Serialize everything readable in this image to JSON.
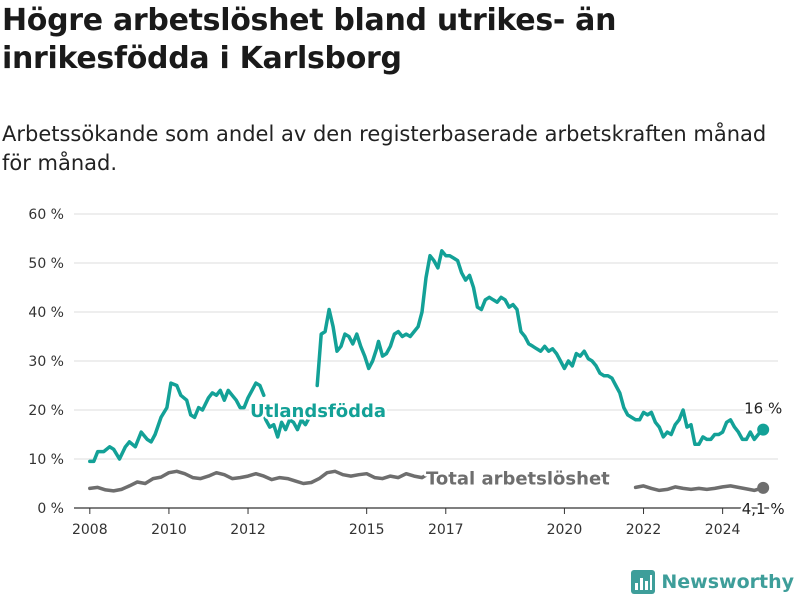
{
  "title": "Högre arbetslöshet bland utrikes- än inrikesfödda i Karlsborg",
  "subtitle": "Arbetssökande som andel av den registerbaserade arbetskraften månad för månad.",
  "brand": {
    "name": "Newsworthy",
    "icon": "bar-chart-logo-icon"
  },
  "colors": {
    "foreign": "#13a197",
    "total": "#6e6e6e",
    "grid": "#dddddd",
    "axis": "#333333"
  },
  "chart_data": {
    "type": "line",
    "title": "Högre arbetslöshet bland utrikes- än inrikesfödda i Karlsborg",
    "ylim": [
      0,
      60
    ],
    "xlim": [
      2007.6,
      2025.4
    ],
    "y_ticks": [
      0,
      10,
      20,
      30,
      40,
      50,
      60
    ],
    "y_tick_labels": [
      "0 %",
      "10 %",
      "20 %",
      "30 %",
      "40 %",
      "50 %",
      "60 %"
    ],
    "x_ticks": [
      2008,
      2010,
      2012,
      2015,
      2017,
      2020,
      2022,
      2024
    ],
    "x_tick_labels": [
      "2008",
      "2010",
      "2012",
      "2015",
      "2017",
      "2020",
      "2022",
      "2024"
    ],
    "grid": true,
    "series": [
      {
        "name": "Utlandsfödda",
        "color": "#13a197",
        "end_label": "16 %",
        "segments": [
          [
            [
              2008.0,
              9.5
            ],
            [
              2008.1,
              9.5
            ],
            [
              2008.2,
              11.5
            ],
            [
              2008.35,
              11.5
            ],
            [
              2008.5,
              12.5
            ],
            [
              2008.6,
              12.0
            ],
            [
              2008.75,
              10.0
            ],
            [
              2008.9,
              12.5
            ],
            [
              2009.0,
              13.5
            ],
            [
              2009.15,
              12.5
            ],
            [
              2009.3,
              15.5
            ],
            [
              2009.45,
              14.0
            ],
            [
              2009.55,
              13.5
            ],
            [
              2009.65,
              15.0
            ],
            [
              2009.8,
              18.5
            ],
            [
              2009.95,
              20.5
            ],
            [
              2010.05,
              25.5
            ],
            [
              2010.2,
              25.0
            ],
            [
              2010.3,
              23.0
            ],
            [
              2010.45,
              22.0
            ],
            [
              2010.55,
              19.0
            ],
            [
              2010.65,
              18.5
            ],
            [
              2010.75,
              20.5
            ],
            [
              2010.85,
              20.0
            ],
            [
              2011.0,
              22.5
            ],
            [
              2011.1,
              23.5
            ],
            [
              2011.2,
              23.0
            ],
            [
              2011.3,
              24.0
            ],
            [
              2011.4,
              22.0
            ],
            [
              2011.5,
              24.0
            ],
            [
              2011.6,
              23.0
            ],
            [
              2011.7,
              22.0
            ],
            [
              2011.8,
              20.5
            ],
            [
              2011.9,
              20.5
            ],
            [
              2012.0,
              22.5
            ],
            [
              2012.1,
              24.0
            ],
            [
              2012.2,
              25.5
            ],
            [
              2012.3,
              25.0
            ],
            [
              2012.4,
              23.0
            ]
          ],
          [
            [
              2012.35,
              20.5
            ],
            [
              2012.45,
              18.0
            ],
            [
              2012.55,
              16.5
            ],
            [
              2012.65,
              17.0
            ],
            [
              2012.75,
              14.5
            ],
            [
              2012.85,
              17.5
            ],
            [
              2012.95,
              16.0
            ],
            [
              2013.05,
              18.0
            ],
            [
              2013.15,
              17.5
            ],
            [
              2013.25,
              16.0
            ],
            [
              2013.35,
              18.0
            ],
            [
              2013.45,
              17.0
            ],
            [
              2013.55,
              18.5
            ],
            [
              2013.6,
              19.0
            ]
          ],
          [
            [
              2013.75,
              25.0
            ],
            [
              2013.85,
              35.5
            ],
            [
              2013.95,
              36.0
            ],
            [
              2014.05,
              40.5
            ],
            [
              2014.15,
              37.0
            ],
            [
              2014.25,
              32.0
            ],
            [
              2014.35,
              33.0
            ],
            [
              2014.45,
              35.5
            ],
            [
              2014.55,
              35.0
            ],
            [
              2014.65,
              33.5
            ],
            [
              2014.75,
              35.5
            ],
            [
              2014.85,
              33.0
            ],
            [
              2014.95,
              31.0
            ],
            [
              2015.05,
              28.5
            ],
            [
              2015.15,
              30.0
            ],
            [
              2015.25,
              32.5
            ],
            [
              2015.3,
              34.0
            ],
            [
              2015.4,
              31.0
            ],
            [
              2015.5,
              31.5
            ],
            [
              2015.6,
              33.0
            ],
            [
              2015.7,
              35.5
            ],
            [
              2015.8,
              36.0
            ],
            [
              2015.9,
              35.0
            ],
            [
              2016.0,
              35.5
            ],
            [
              2016.1,
              35.0
            ],
            [
              2016.2,
              36.0
            ],
            [
              2016.3,
              37.0
            ],
            [
              2016.4,
              40.0
            ],
            [
              2016.5,
              47.0
            ],
            [
              2016.6,
              51.5
            ],
            [
              2016.7,
              50.5
            ],
            [
              2016.8,
              49.0
            ],
            [
              2016.9,
              52.5
            ],
            [
              2017.0,
              51.5
            ],
            [
              2017.1,
              51.5
            ],
            [
              2017.2,
              51.0
            ],
            [
              2017.3,
              50.5
            ],
            [
              2017.4,
              48.0
            ],
            [
              2017.5,
              46.5
            ],
            [
              2017.6,
              47.5
            ],
            [
              2017.7,
              45.0
            ],
            [
              2017.8,
              41.0
            ],
            [
              2017.9,
              40.5
            ],
            [
              2018.0,
              42.5
            ],
            [
              2018.1,
              43.0
            ],
            [
              2018.2,
              42.5
            ],
            [
              2018.3,
              42.0
            ],
            [
              2018.4,
              43.0
            ],
            [
              2018.5,
              42.5
            ],
            [
              2018.6,
              41.0
            ],
            [
              2018.7,
              41.5
            ],
            [
              2018.8,
              40.5
            ],
            [
              2018.9,
              36.0
            ],
            [
              2019.0,
              35.0
            ],
            [
              2019.1,
              33.5
            ],
            [
              2019.2,
              33.0
            ],
            [
              2019.3,
              32.5
            ],
            [
              2019.4,
              32.0
            ],
            [
              2019.5,
              33.0
            ],
            [
              2019.6,
              32.0
            ],
            [
              2019.7,
              32.5
            ],
            [
              2019.8,
              31.5
            ],
            [
              2019.9,
              30.0
            ],
            [
              2020.0,
              28.5
            ],
            [
              2020.1,
              30.0
            ],
            [
              2020.2,
              29.0
            ],
            [
              2020.3,
              31.5
            ],
            [
              2020.4,
              31.0
            ],
            [
              2020.5,
              32.0
            ],
            [
              2020.6,
              30.5
            ],
            [
              2020.7,
              30.0
            ],
            [
              2020.8,
              29.0
            ],
            [
              2020.9,
              27.5
            ],
            [
              2021.0,
              27.0
            ],
            [
              2021.1,
              27.0
            ],
            [
              2021.2,
              26.5
            ],
            [
              2021.3,
              25.0
            ],
            [
              2021.4,
              23.5
            ],
            [
              2021.5,
              20.5
            ],
            [
              2021.6,
              19.0
            ],
            [
              2021.7,
              18.5
            ],
            [
              2021.8,
              18.0
            ],
            [
              2021.9,
              18.0
            ],
            [
              2022.0,
              19.5
            ],
            [
              2022.1,
              19.0
            ],
            [
              2022.2,
              19.5
            ],
            [
              2022.3,
              17.5
            ],
            [
              2022.4,
              16.5
            ],
            [
              2022.5,
              14.5
            ],
            [
              2022.6,
              15.5
            ],
            [
              2022.7,
              15.0
            ],
            [
              2022.8,
              17.0
            ],
            [
              2022.9,
              18.0
            ],
            [
              2023.0,
              20.0
            ],
            [
              2023.1,
              16.5
            ],
            [
              2023.2,
              17.0
            ],
            [
              2023.3,
              13.0
            ],
            [
              2023.4,
              13.0
            ],
            [
              2023.5,
              14.5
            ],
            [
              2023.6,
              14.0
            ],
            [
              2023.7,
              14.0
            ],
            [
              2023.8,
              15.0
            ],
            [
              2023.9,
              15.0
            ],
            [
              2024.0,
              15.5
            ],
            [
              2024.1,
              17.5
            ],
            [
              2024.2,
              18.0
            ],
            [
              2024.3,
              16.5
            ],
            [
              2024.4,
              15.5
            ],
            [
              2024.5,
              14.0
            ],
            [
              2024.6,
              14.0
            ],
            [
              2024.7,
              15.5
            ],
            [
              2024.8,
              14.0
            ],
            [
              2024.9,
              15.0
            ],
            [
              2025.0,
              16.0
            ]
          ]
        ]
      },
      {
        "name": "Total arbetslöshet",
        "color": "#6e6e6e",
        "end_label": "4,1 %",
        "segments": [
          [
            [
              2008.0,
              4.0
            ],
            [
              2008.2,
              4.2
            ],
            [
              2008.4,
              3.7
            ],
            [
              2008.6,
              3.5
            ],
            [
              2008.8,
              3.8
            ],
            [
              2009.0,
              4.5
            ],
            [
              2009.2,
              5.3
            ],
            [
              2009.4,
              5.0
            ],
            [
              2009.6,
              6.0
            ],
            [
              2009.8,
              6.3
            ],
            [
              2010.0,
              7.2
            ],
            [
              2010.2,
              7.5
            ],
            [
              2010.4,
              7.0
            ],
            [
              2010.6,
              6.2
            ],
            [
              2010.8,
              6.0
            ],
            [
              2011.0,
              6.5
            ],
            [
              2011.2,
              7.2
            ],
            [
              2011.4,
              6.8
            ],
            [
              2011.6,
              6.0
            ],
            [
              2011.8,
              6.2
            ],
            [
              2012.0,
              6.5
            ],
            [
              2012.2,
              7.0
            ],
            [
              2012.4,
              6.5
            ],
            [
              2012.6,
              5.8
            ],
            [
              2012.8,
              6.2
            ],
            [
              2013.0,
              6.0
            ],
            [
              2013.2,
              5.5
            ],
            [
              2013.4,
              5.0
            ],
            [
              2013.6,
              5.2
            ],
            [
              2013.8,
              6.0
            ],
            [
              2014.0,
              7.2
            ],
            [
              2014.2,
              7.5
            ],
            [
              2014.4,
              6.8
            ],
            [
              2014.6,
              6.5
            ],
            [
              2014.8,
              6.8
            ],
            [
              2015.0,
              7.0
            ],
            [
              2015.2,
              6.2
            ],
            [
              2015.4,
              6.0
            ],
            [
              2015.6,
              6.5
            ],
            [
              2015.8,
              6.2
            ],
            [
              2016.0,
              7.0
            ],
            [
              2016.2,
              6.5
            ],
            [
              2016.4,
              6.2
            ],
            [
              2016.6,
              7.2
            ]
          ],
          [
            [
              2021.8,
              4.2
            ],
            [
              2022.0,
              4.5
            ],
            [
              2022.2,
              4.0
            ],
            [
              2022.4,
              3.6
            ],
            [
              2022.6,
              3.8
            ],
            [
              2022.8,
              4.3
            ],
            [
              2023.0,
              4.0
            ],
            [
              2023.2,
              3.8
            ],
            [
              2023.4,
              4.0
            ],
            [
              2023.6,
              3.8
            ],
            [
              2023.8,
              4.0
            ],
            [
              2024.0,
              4.3
            ],
            [
              2024.2,
              4.5
            ],
            [
              2024.4,
              4.2
            ],
            [
              2024.6,
              3.9
            ],
            [
              2024.8,
              3.6
            ],
            [
              2025.0,
              4.1
            ]
          ]
        ]
      }
    ]
  }
}
